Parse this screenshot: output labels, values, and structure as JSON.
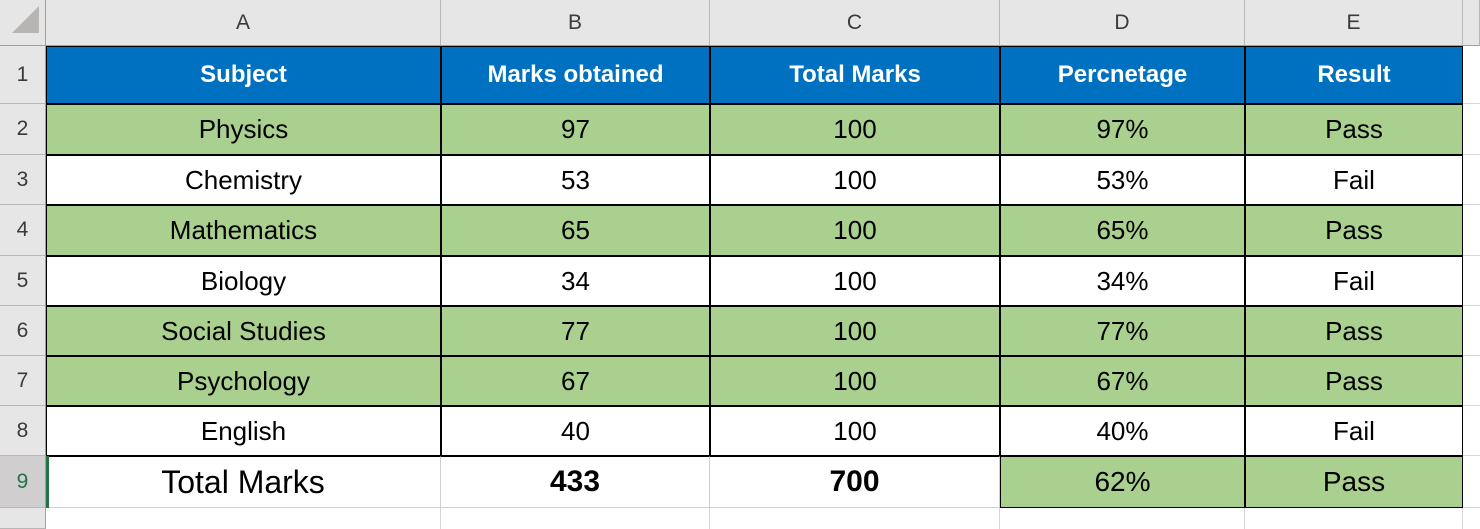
{
  "app": {
    "type": "spreadsheet-grid"
  },
  "colors": {
    "header_fill": "#0070C0",
    "header_text": "#FFFFFF",
    "pass_row_fill": "#A9D08E",
    "fail_row_fill": "#FFFFFF",
    "selection_green": "#217346",
    "grid_header_bg": "#E7E6E6",
    "selected_row_header_bg": "#D0CECE",
    "table_border": "#000000",
    "gridline": "#D6D6D6"
  },
  "column_headers": [
    "A",
    "B",
    "C",
    "D",
    "E"
  ],
  "row_headers": [
    "1",
    "2",
    "3",
    "4",
    "5",
    "6",
    "7",
    "8",
    "9"
  ],
  "selection": {
    "active_row": "9",
    "active_cell": "A9"
  },
  "table": {
    "columns": [
      "Subject",
      "Marks obtained",
      "Total Marks",
      "Percnetage",
      "Result"
    ],
    "rows": [
      {
        "subject": "Physics",
        "marks_obtained": "97",
        "total_marks": "100",
        "percentage": "97%",
        "result": "Pass",
        "highlighted": true
      },
      {
        "subject": "Chemistry",
        "marks_obtained": "53",
        "total_marks": "100",
        "percentage": "53%",
        "result": "Fail",
        "highlighted": false
      },
      {
        "subject": "Mathematics",
        "marks_obtained": "65",
        "total_marks": "100",
        "percentage": "65%",
        "result": "Pass",
        "highlighted": true
      },
      {
        "subject": "Biology",
        "marks_obtained": "34",
        "total_marks": "100",
        "percentage": "34%",
        "result": "Fail",
        "highlighted": false
      },
      {
        "subject": "Social Studies",
        "marks_obtained": "77",
        "total_marks": "100",
        "percentage": "77%",
        "result": "Pass",
        "highlighted": true
      },
      {
        "subject": "Psychology",
        "marks_obtained": "67",
        "total_marks": "100",
        "percentage": "67%",
        "result": "Pass",
        "highlighted": true
      },
      {
        "subject": "English",
        "marks_obtained": "40",
        "total_marks": "100",
        "percentage": "40%",
        "result": "Fail",
        "highlighted": false
      }
    ],
    "total_row": {
      "label": "Total Marks",
      "marks_obtained": "433",
      "total_marks": "700",
      "percentage": "62%",
      "result": "Pass",
      "highlighted_cells": [
        "percentage",
        "result"
      ]
    }
  }
}
